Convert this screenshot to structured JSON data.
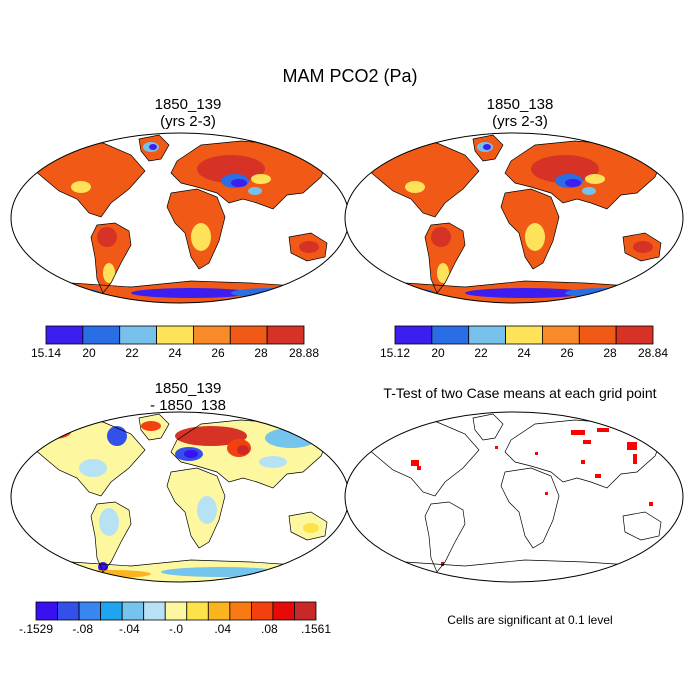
{
  "title": "MAM PCO2 (Pa)",
  "panels": [
    {
      "id": "p1",
      "title_line1": "1850_139",
      "title_line2": "(yrs 2-3)"
    },
    {
      "id": "p2",
      "title_line1": "1850_138",
      "title_line2": "(yrs 2-3)"
    },
    {
      "id": "p3",
      "title_line1": "1850_139",
      "title_line2": "- 1850_138"
    },
    {
      "id": "p4",
      "title_line1": "T-Test of two Case means at each grid point",
      "title_line2": ""
    }
  ],
  "colorbars": [
    {
      "id": "cb1",
      "labels": [
        "15.14",
        "20",
        "22",
        "24",
        "26",
        "28",
        "28.88"
      ],
      "colors": [
        "#3c1ef0",
        "#2a6ee6",
        "#78c0ec",
        "#fde25a",
        "#f98a2a",
        "#f05a16",
        "#d63226"
      ]
    },
    {
      "id": "cb2",
      "labels": [
        "15.12",
        "20",
        "22",
        "24",
        "26",
        "28",
        "28.84"
      ],
      "colors": [
        "#3c1ef0",
        "#2a6ee6",
        "#78c0ec",
        "#fde25a",
        "#f98a2a",
        "#f05a16",
        "#d63226"
      ]
    },
    {
      "id": "cb3",
      "labels": [
        "-.1529",
        "-.08",
        "-.04",
        "-.0",
        ".04",
        ".08",
        ".1561"
      ],
      "colors": [
        "#3a10f0",
        "#3350ea",
        "#3a86f0",
        "#1fa4f0",
        "#74c4ee",
        "#b7e2f4",
        "#fdf7a0",
        "#fde34a",
        "#fbb420",
        "#f87a14",
        "#f2400e",
        "#e60a08",
        "#c82828"
      ]
    }
  ],
  "ttest_note": "Cells are significant at 0.1 level"
}
